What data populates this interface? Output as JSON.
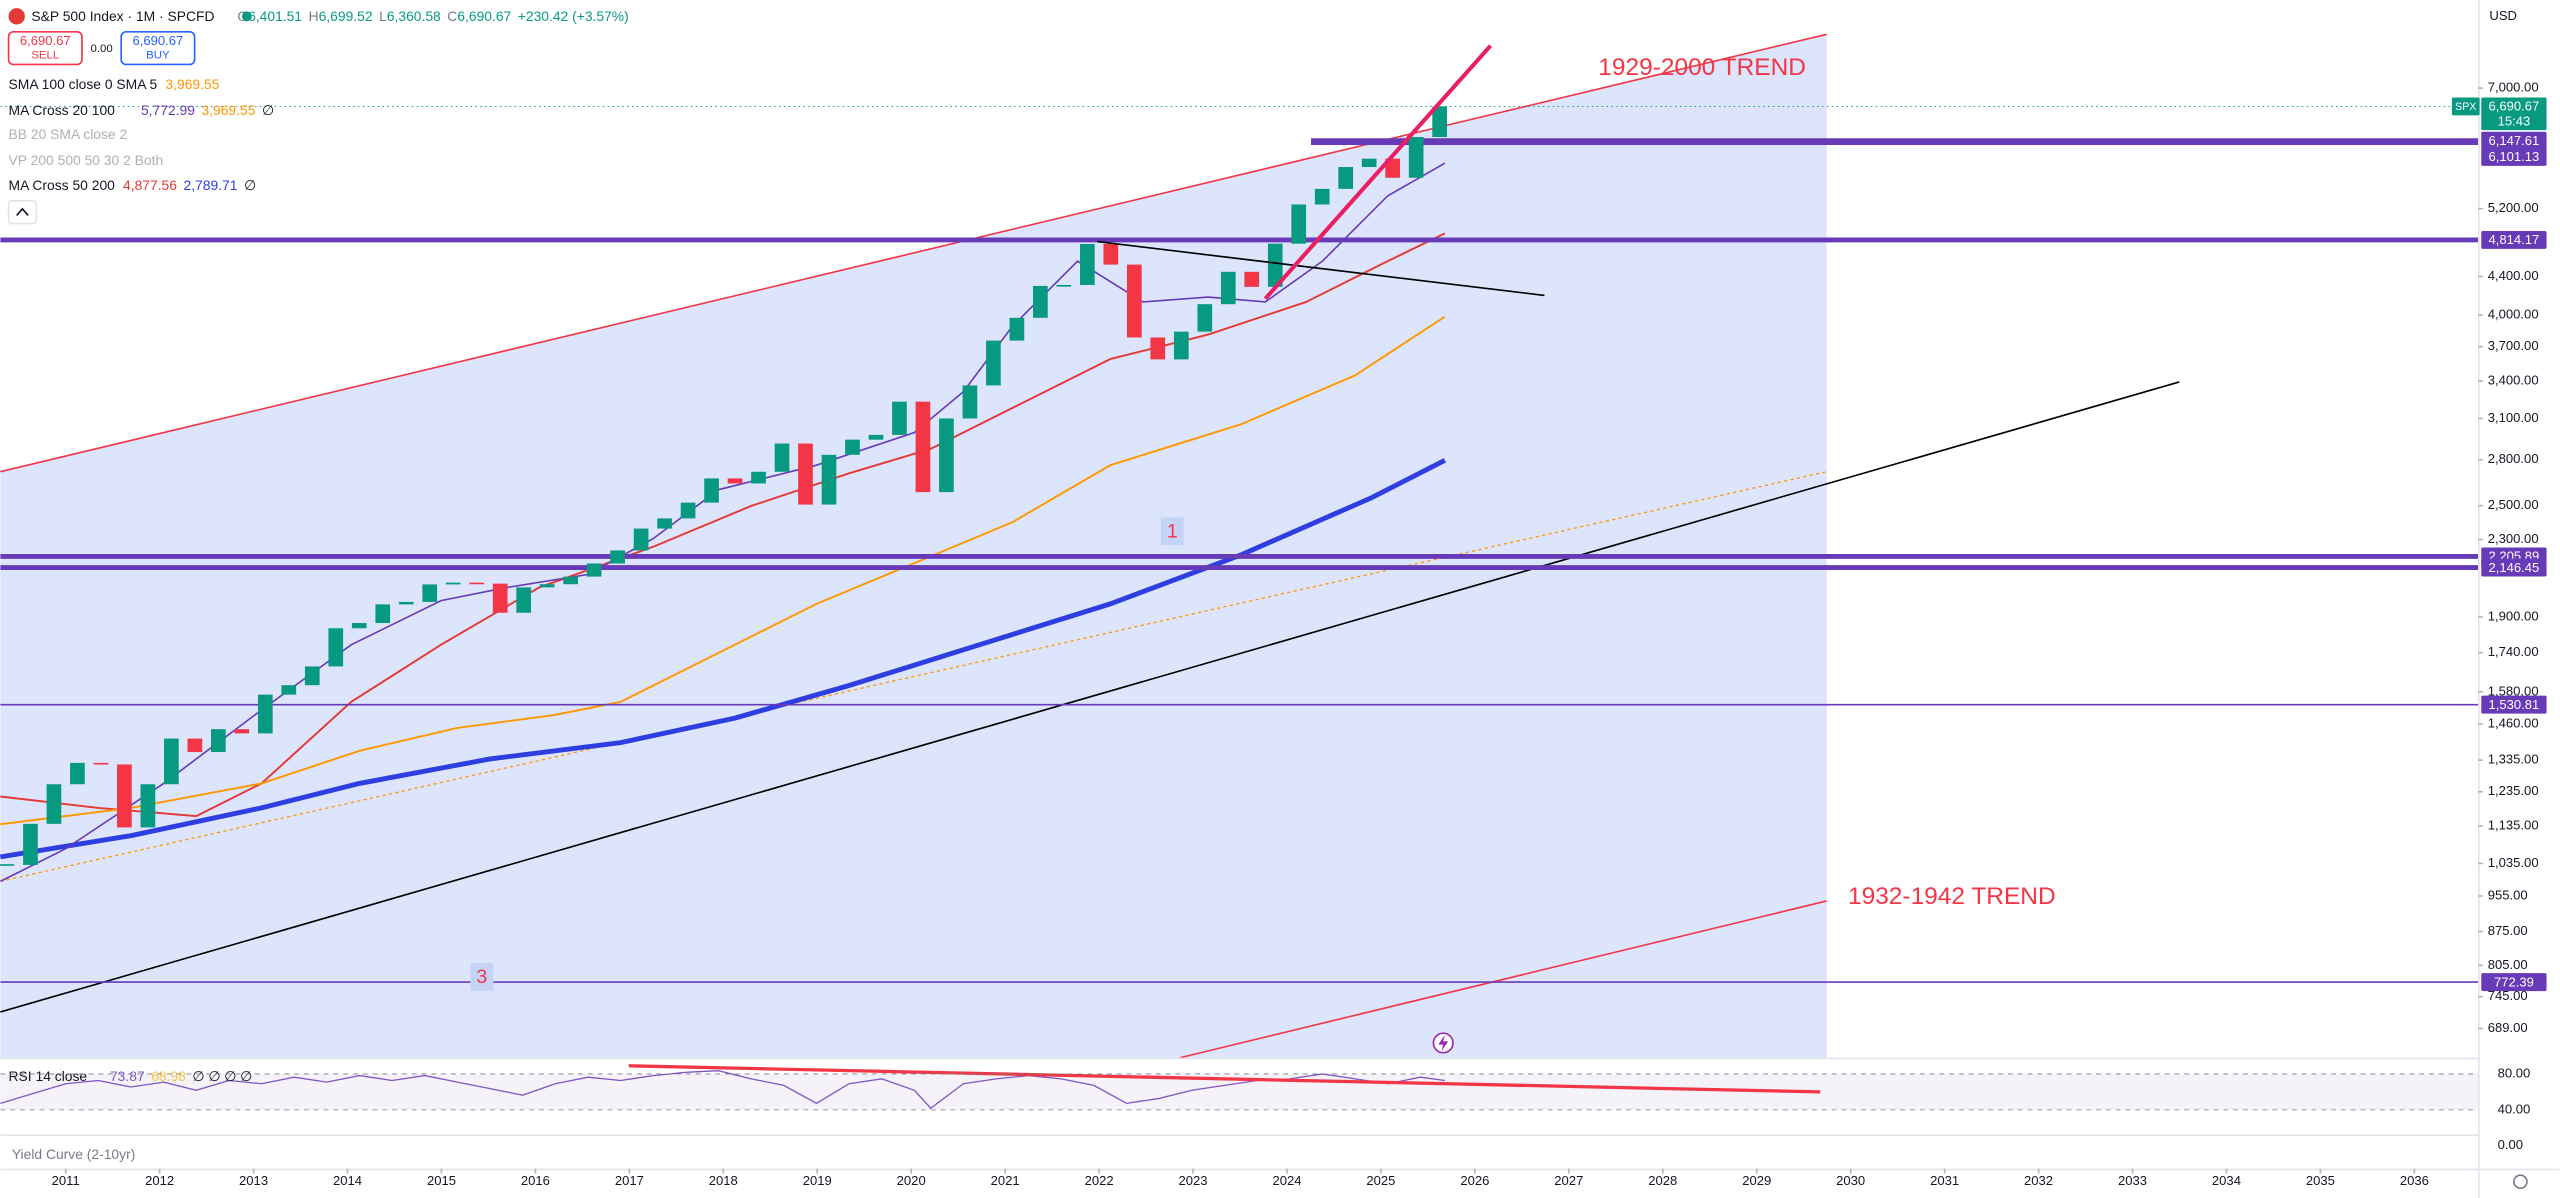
{
  "header": {
    "symbol": "S&P 500 Index · 1M · SPCFD",
    "o_label": "O",
    "o": "6,401.51",
    "h_label": "H",
    "h": "6,699.52",
    "l_label": "L",
    "l": "6,360.58",
    "c_label": "C",
    "c": "6,690.67",
    "change": "+230.42 (+3.57%)"
  },
  "trade": {
    "sell_price": "6,690.67",
    "sell": "SELL",
    "spread": "0.00",
    "buy_price": "6,690.67",
    "buy": "BUY"
  },
  "indicators": [
    {
      "name": "SMA 100 close 0 SMA 5",
      "values": [
        "3,969.55"
      ]
    },
    {
      "name": "MA Cross 20 100",
      "values": [
        "5,772.99",
        "3,969.55",
        "∅"
      ]
    },
    {
      "name": "BB 20 SMA close 2",
      "values": []
    },
    {
      "name": "VP 200 500 50 30 2 Both",
      "values": []
    },
    {
      "name": "MA Cross 50 200",
      "values": [
        "4,877.56",
        "2,789.71",
        "∅"
      ]
    }
  ],
  "rsi": {
    "name": "RSI 14 close",
    "values": [
      "73.87",
      "68.98",
      "∅ ∅ ∅ ∅"
    ],
    "ticks": [
      {
        "value": 80,
        "label": "80.00"
      },
      {
        "value": 40,
        "label": "40.00"
      },
      {
        "value": 0,
        "label": "0.00"
      }
    ]
  },
  "yield_curve": "Yield Curve (2-10yr)",
  "price_axis": {
    "unit": "USD",
    "log_scale": true,
    "ticks": [
      {
        "value": 7000,
        "label": "7,000.00"
      },
      {
        "value": 5200,
        "label": "5,200.00"
      },
      {
        "value": 4400,
        "label": "4,400.00"
      },
      {
        "value": 4000,
        "label": "4,000.00"
      },
      {
        "value": 3700,
        "label": "3,700.00"
      },
      {
        "value": 3400,
        "label": "3,400.00"
      },
      {
        "value": 3100,
        "label": "3,100.00"
      },
      {
        "value": 2800,
        "label": "2,800.00"
      },
      {
        "value": 2500,
        "label": "2,500.00"
      },
      {
        "value": 2300,
        "label": "2,300.00"
      },
      {
        "value": 1900,
        "label": "1,900.00"
      },
      {
        "value": 1740,
        "label": "1,740.00"
      },
      {
        "value": 1580,
        "label": "1,580.00"
      },
      {
        "value": 1460,
        "label": "1,460.00"
      },
      {
        "value": 1335,
        "label": "1,335.00"
      },
      {
        "value": 1235,
        "label": "1,235.00"
      },
      {
        "value": 1135,
        "label": "1,135.00"
      },
      {
        "value": 1035,
        "label": "1,035.00"
      },
      {
        "value": 955,
        "label": "955.00"
      },
      {
        "value": 875,
        "label": "875.00"
      },
      {
        "value": 805,
        "label": "805.00"
      },
      {
        "value": 745,
        "label": "745.00"
      },
      {
        "value": 689,
        "label": "689.00"
      }
    ]
  },
  "last_price": {
    "symbol": "SPX",
    "value": 6690.67,
    "label": "6,690.67",
    "countdown": "15:43"
  },
  "levels": [
    {
      "value": 6147.61,
      "label": "6,147.61"
    },
    {
      "value": 6101.13,
      "label": "6,101.13"
    },
    {
      "value": 4814.17,
      "label": "4,814.17"
    },
    {
      "value": 2205.89,
      "label": "2,205.89"
    },
    {
      "value": 2146.45,
      "label": "2,146.45"
    },
    {
      "value": 1530.81,
      "label": "1,530.81"
    },
    {
      "value": 772.39,
      "label": "772.39"
    }
  ],
  "time_axis": {
    "ticks": [
      2011,
      2012,
      2013,
      2014,
      2015,
      2016,
      2017,
      2018,
      2019,
      2020,
      2021,
      2022,
      2023,
      2024,
      2025,
      2026,
      2027,
      2028,
      2029,
      2030,
      2031,
      2032,
      2033,
      2034,
      2035,
      2036
    ]
  },
  "annotations": [
    "1929-2000 TREND",
    "1932-1942 TREND",
    "1",
    "3"
  ],
  "price_series": {
    "x": [
      2010.5,
      2010.75,
      2011,
      2011.25,
      2011.5,
      2011.75,
      2012,
      2012.25,
      2012.5,
      2012.75,
      2013,
      2013.25,
      2013.5,
      2013.75,
      2014,
      2014.25,
      2014.5,
      2014.75,
      2015,
      2015.25,
      2015.5,
      2015.75,
      2016,
      2016.25,
      2016.5,
      2016.75,
      2017,
      2017.25,
      2017.5,
      2017.75,
      2018,
      2018.25,
      2018.5,
      2018.75,
      2019,
      2019.25,
      2019.5,
      2019.75,
      2020,
      2020.25,
      2020.5,
      2020.75,
      2021,
      2021.25,
      2021.5,
      2021.75,
      2022,
      2022.25,
      2022.5,
      2022.75,
      2023,
      2023.25,
      2023.5,
      2023.75,
      2024,
      2024.25,
      2024.5,
      2024.75,
      2025,
      2025.25,
      2025.5,
      2025.75
    ],
    "close": [
      1031,
      1141,
      1258,
      1326,
      1321,
      1131,
      1258,
      1408,
      1362,
      1441,
      1426,
      1569,
      1606,
      1682,
      1848,
      1872,
      1960,
      1972,
      2059,
      2068,
      2063,
      1920,
      2044,
      2060,
      2099,
      2168,
      2239,
      2363,
      2423,
      2519,
      2674,
      2641,
      2718,
      2914,
      2507,
      2834,
      2942,
      2977,
      3231,
      2585,
      3100,
      3363,
      3756,
      3973,
      4298,
      4308,
      4766,
      4530,
      3785,
      3586,
      3840,
      4109,
      4450,
      4288,
      4770,
      5254,
      5460,
      5762,
      5882,
      5612,
      6205,
      6690
    ]
  }
}
